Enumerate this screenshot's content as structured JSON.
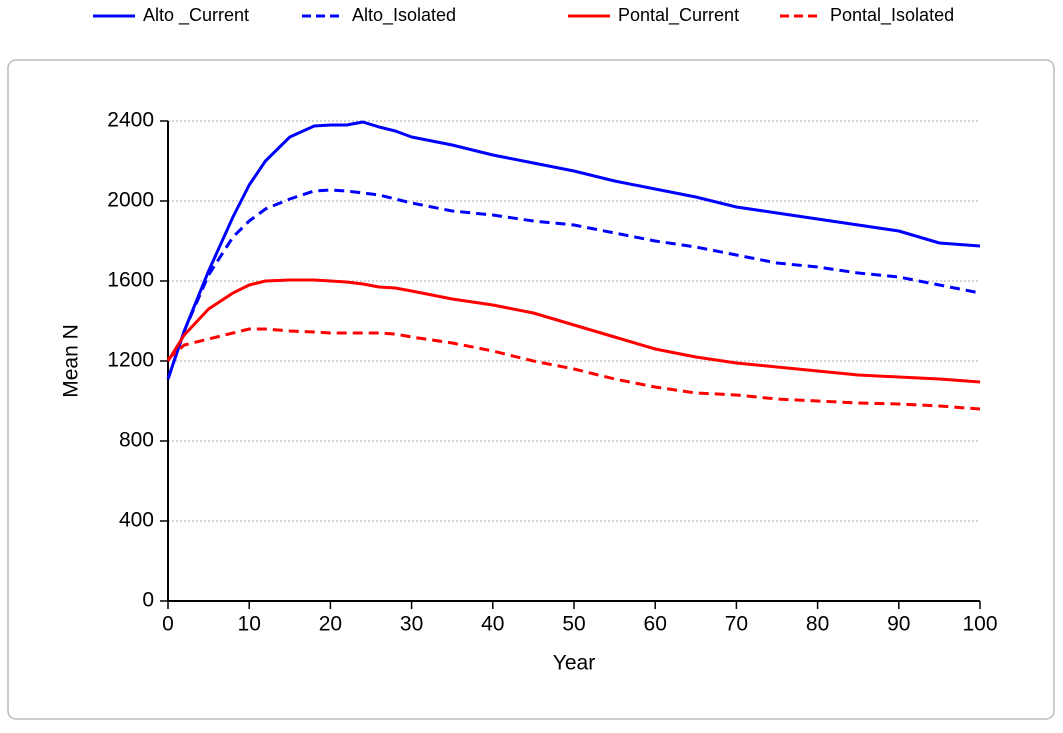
{
  "chart_data": {
    "type": "line",
    "x_label": "Year",
    "y_label": "Mean N",
    "x": [
      0,
      2,
      5,
      8,
      10,
      12,
      15,
      18,
      20,
      22,
      24,
      26,
      28,
      30,
      35,
      40,
      45,
      50,
      55,
      60,
      65,
      70,
      75,
      80,
      85,
      90,
      95,
      100
    ],
    "series": [
      {
        "name": "Alto _Current",
        "color": "#0000ff",
        "style": "solid",
        "values": [
          1110,
          1350,
          1650,
          1920,
          2080,
          2200,
          2320,
          2375,
          2380,
          2380,
          2395,
          2370,
          2350,
          2320,
          2280,
          2230,
          2190,
          2150,
          2100,
          2060,
          2020,
          1970,
          1940,
          1910,
          1880,
          1850,
          1790,
          1775
        ]
      },
      {
        "name": "Alto_Isolated",
        "color": "#0000ff",
        "style": "dashed",
        "values": [
          1110,
          1350,
          1630,
          1820,
          1900,
          1960,
          2010,
          2050,
          2055,
          2050,
          2040,
          2030,
          2010,
          1990,
          1950,
          1930,
          1900,
          1880,
          1840,
          1800,
          1770,
          1730,
          1690,
          1670,
          1640,
          1620,
          1580,
          1540
        ]
      },
      {
        "name": "Pontal_Current",
        "color": "#ff0000",
        "style": "solid",
        "values": [
          1200,
          1330,
          1460,
          1540,
          1580,
          1600,
          1605,
          1605,
          1600,
          1595,
          1585,
          1570,
          1565,
          1550,
          1510,
          1480,
          1440,
          1380,
          1320,
          1260,
          1220,
          1190,
          1170,
          1150,
          1130,
          1120,
          1110,
          1095
        ]
      },
      {
        "name": "Pontal_Isolated",
        "color": "#ff0000",
        "style": "dashed",
        "values": [
          1210,
          1280,
          1310,
          1340,
          1360,
          1360,
          1350,
          1345,
          1340,
          1340,
          1340,
          1340,
          1335,
          1320,
          1290,
          1250,
          1200,
          1160,
          1110,
          1070,
          1040,
          1030,
          1010,
          1000,
          990,
          985,
          975,
          960
        ]
      }
    ],
    "xlim": [
      0,
      100
    ],
    "xticks": [
      0,
      10,
      20,
      30,
      40,
      50,
      60,
      70,
      80,
      90,
      100
    ],
    "ylim": [
      0,
      2400
    ],
    "yticks": [
      0,
      400,
      800,
      1200,
      1600,
      2000,
      2400
    ],
    "grid": true,
    "legend": "top"
  }
}
